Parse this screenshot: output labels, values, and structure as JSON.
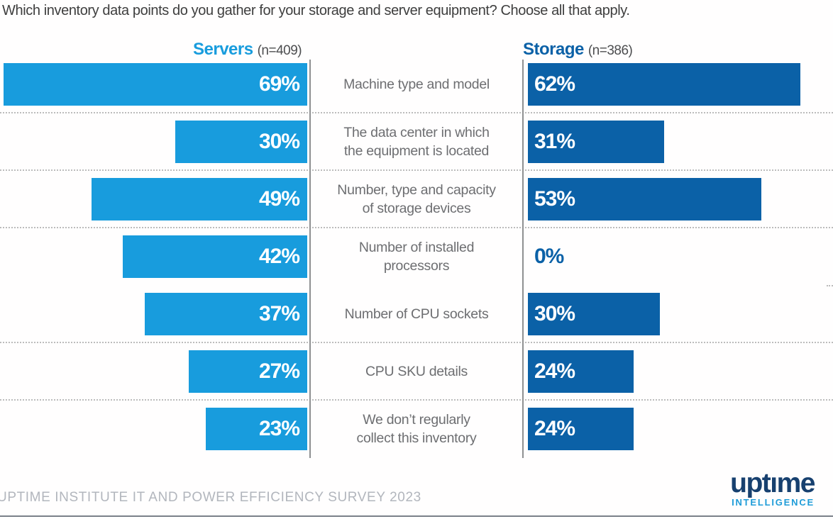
{
  "title": "Which inventory data points do you gather for your storage and server equipment? Choose all that apply.",
  "colors": {
    "servers_blue": "#189cdd",
    "storage_blue": "#0b61a7",
    "category_gray": "#6d6e71",
    "axis_gray": "#8f9092",
    "footer_gray": "#b2b6bd",
    "logo_navy": "#17406f",
    "logo_light_blue": "#1f9cd8"
  },
  "headers": {
    "servers_label": "Servers",
    "servers_n": "(n=409)",
    "storage_label": "Storage",
    "storage_n": "(n=386)"
  },
  "chart_data": {
    "type": "bar",
    "orientation": "horizontal-diverging",
    "value_format": "percent",
    "categories": [
      "Machine type and model",
      "The data center in which the equipment is located",
      "Number, type and capacity of storage devices",
      "Number of installed processors",
      "Number of CPU sockets",
      "CPU SKU details",
      "We don’t regularly collect this inventory"
    ],
    "category_lines": [
      [
        "Machine type and model"
      ],
      [
        "The data center in which",
        "the equipment is located"
      ],
      [
        "Number, type and capacity",
        "of storage devices"
      ],
      [
        "Number of installed",
        "processors"
      ],
      [
        "Number of CPU sockets"
      ],
      [
        "CPU SKU details"
      ],
      [
        "We don’t regularly",
        "collect this inventory"
      ]
    ],
    "series": [
      {
        "name": "Servers",
        "n": 409,
        "values": [
          69,
          30,
          49,
          42,
          37,
          27,
          23
        ]
      },
      {
        "name": "Storage",
        "n": 386,
        "values": [
          62,
          31,
          53,
          0,
          30,
          24,
          24
        ]
      }
    ],
    "xlim": [
      0,
      70
    ],
    "grid": "dotted-row-separators",
    "legend_position": "top"
  },
  "footer": {
    "source": "UPTIME INSTITUTE IT AND POWER EFFICIENCY SURVEY 2023",
    "logo_primary": "uptıme",
    "logo_secondary": "INTELLIGENCE"
  }
}
